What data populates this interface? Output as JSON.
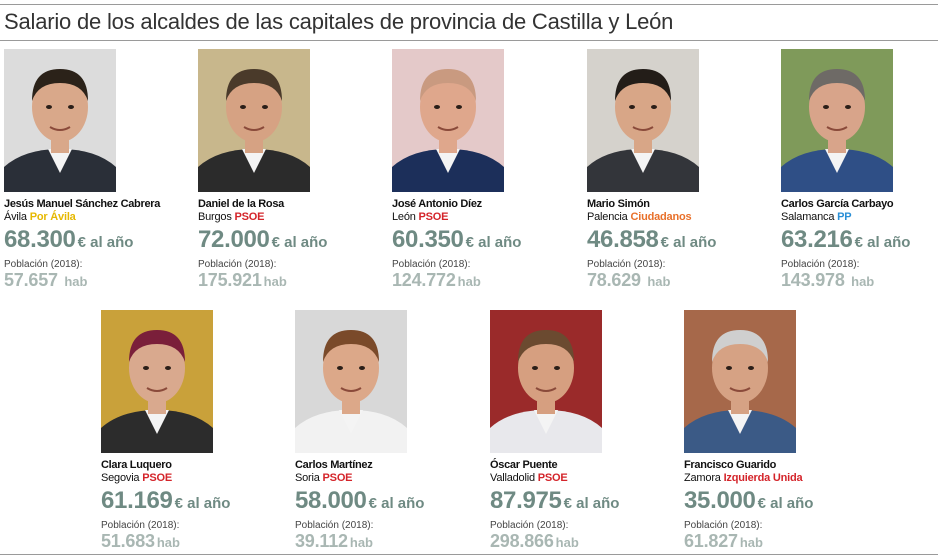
{
  "title": "Salario de los alcaldes de las capitales de provincia de Castilla y León",
  "salary_unit": "€ al año",
  "population_label": "Población (2018):",
  "population_unit": "hab",
  "mayors": [
    {
      "name": "Jesús Manuel Sánchez Cabrera",
      "city": "Ávila",
      "party": "Por Ávila",
      "party_color": "#e6b800",
      "salary": "68.300",
      "population": "57.657",
      "pop_unit": "hab",
      "pop_sep": " ",
      "photo_bg": "#dcdcdc",
      "jacket": "#2a2f38",
      "skin": "#d9a88a",
      "hair": "#2b2219"
    },
    {
      "name": "Daniel de la Rosa",
      "city": "Burgos",
      "party": "PSOE",
      "party_color": "#d4242a",
      "salary": "72.000",
      "population": "175.921",
      "pop_unit": "hab",
      "pop_sep": "",
      "photo_bg": "#c8b78c",
      "jacket": "#2b2b2b",
      "skin": "#d6a283",
      "hair": "#4a3a2a"
    },
    {
      "name": "José Antonio Díez",
      "city": "León",
      "party": "PSOE",
      "party_color": "#d4242a",
      "salary": "60.350",
      "population": "124.772",
      "pop_unit": "hab",
      "pop_sep": "",
      "photo_bg": "#e4c9c9",
      "jacket": "#1c2f5a",
      "skin": "#dfa78c",
      "hair": "#c99a80"
    },
    {
      "name": "Mario Simón",
      "city": "Palencia",
      "party": "Ciudadanos",
      "party_color": "#e8702a",
      "salary": "46.858",
      "population": "78.629",
      "pop_unit": "hab",
      "pop_sep": " ",
      "photo_bg": "#d5d2cc",
      "jacket": "#33353a",
      "skin": "#d8a687",
      "hair": "#231d18"
    },
    {
      "name": "Carlos García Carbayo",
      "city": "Salamanca",
      "party": "PP",
      "party_color": "#2a8fd6",
      "salary": "63.216",
      "population": "143.978",
      "pop_unit": "hab",
      "pop_sep": " ",
      "photo_bg": "#7f9a5a",
      "jacket": "#2f4f86",
      "skin": "#d8a48a",
      "hair": "#6e6a66"
    },
    {
      "name": "Clara Luquero",
      "city": "Segovia",
      "party": "PSOE",
      "party_color": "#d4242a",
      "salary": "61.169",
      "population": "51.683",
      "pop_unit": "hab",
      "pop_sep": "",
      "photo_bg": "#c9a13a",
      "jacket": "#2c2c2c",
      "skin": "#d9a98e",
      "hair": "#7a1f3a"
    },
    {
      "name": "Carlos Martínez",
      "city": "Soria",
      "party": "PSOE",
      "party_color": "#d4242a",
      "salary": "58.000",
      "population": "39.112",
      "pop_unit": "hab",
      "pop_sep": "",
      "photo_bg": "#d8d8d8",
      "jacket": "#f2f2f2",
      "skin": "#dca889",
      "hair": "#7a4a2a"
    },
    {
      "name": "Óscar Puente",
      "city": "Valladolid",
      "party": "PSOE",
      "party_color": "#d4242a",
      "salary": "87.975",
      "population": "298.866",
      "pop_unit": "hab",
      "pop_sep": "",
      "photo_bg": "#9a2a2a",
      "jacket": "#e8e8ec",
      "skin": "#d69f80",
      "hair": "#6b4a30"
    },
    {
      "name": "Francisco Guarido",
      "city": "Zamora",
      "party": "Izquierda Unida",
      "party_color": "#d4242a",
      "salary": "35.000",
      "population": "61.827",
      "pop_unit": "hab",
      "pop_sep": "",
      "photo_bg": "#a6684a",
      "jacket": "#3b5a86",
      "skin": "#d6a284",
      "hair": "#cfcfcf"
    }
  ]
}
